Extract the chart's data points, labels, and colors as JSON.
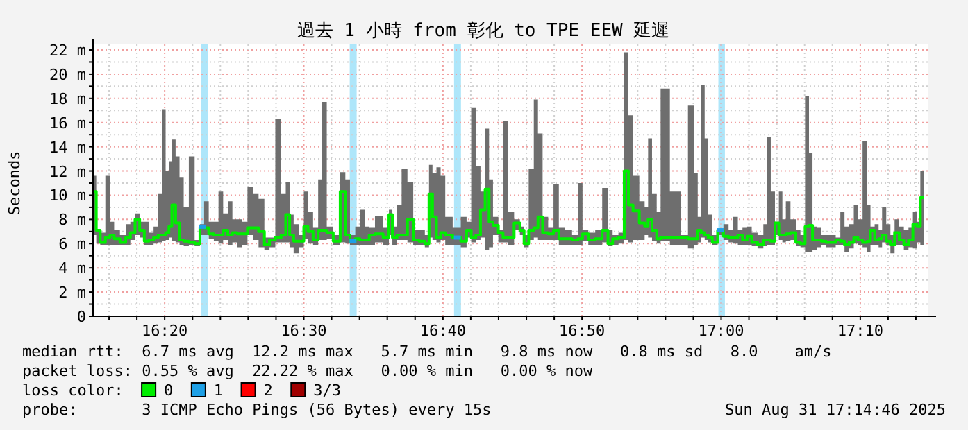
{
  "chart_data": {
    "type": "line",
    "title": "過去 1 小時 from 彰化 to TPE EEW 延遲",
    "ylabel": "Seconds",
    "legend": "bottom",
    "legend_title": "loss color:",
    "grid": true,
    "xlim": [
      16.2475,
      17.2475
    ],
    "ylim": [
      0,
      22
    ],
    "xticks": [
      {
        "value": 16.2667,
        "label": null
      },
      {
        "value": 16.3,
        "label": null
      },
      {
        "value": 16.3333,
        "label": "16:20"
      },
      {
        "value": 16.3667,
        "label": null
      },
      {
        "value": 16.4,
        "label": null
      },
      {
        "value": 16.4333,
        "label": null
      },
      {
        "value": 16.4667,
        "label": null
      },
      {
        "value": 16.5,
        "label": "16:30"
      },
      {
        "value": 16.5333,
        "label": null
      },
      {
        "value": 16.5667,
        "label": null
      },
      {
        "value": 16.6,
        "label": null
      },
      {
        "value": 16.6333,
        "label": null
      },
      {
        "value": 16.6667,
        "label": "16:40"
      },
      {
        "value": 16.7,
        "label": null
      },
      {
        "value": 16.7333,
        "label": null
      },
      {
        "value": 16.7667,
        "label": null
      },
      {
        "value": 16.8,
        "label": null
      },
      {
        "value": 16.8333,
        "label": "16:50"
      },
      {
        "value": 16.8667,
        "label": null
      },
      {
        "value": 16.9,
        "label": null
      },
      {
        "value": 16.9333,
        "label": null
      },
      {
        "value": 16.9667,
        "label": null
      },
      {
        "value": 17,
        "label": "17:00"
      },
      {
        "value": 17.0333,
        "label": null
      },
      {
        "value": 17.0667,
        "label": null
      },
      {
        "value": 17.1,
        "label": null
      },
      {
        "value": 17.1333,
        "label": null
      },
      {
        "value": 17.1667,
        "label": "17:10"
      },
      {
        "value": 17.2,
        "label": null
      },
      {
        "value": 17.2333,
        "label": null
      }
    ],
    "yticks": [
      0,
      {
        "value": 1,
        "label": null
      },
      {
        "value": 2,
        "label": "2 m"
      },
      {
        "value": 3,
        "label": null
      },
      {
        "value": 4,
        "label": "4 m"
      },
      {
        "value": 5,
        "label": null
      },
      {
        "value": 6,
        "label": "6 m"
      },
      {
        "value": 7,
        "label": null
      },
      {
        "value": 8,
        "label": "8 m"
      },
      {
        "value": 9,
        "label": null
      },
      {
        "value": 10,
        "label": "10 m"
      },
      {
        "value": 11,
        "label": null
      },
      {
        "value": 12,
        "label": "12 m"
      },
      {
        "value": 13,
        "label": null
      },
      {
        "value": 14,
        "label": "14 m"
      },
      {
        "value": 15,
        "label": null
      },
      {
        "value": 16,
        "label": "16 m"
      },
      {
        "value": 17,
        "label": null
      },
      {
        "value": 18,
        "label": "18 m"
      },
      {
        "value": 19,
        "label": null
      },
      {
        "value": 20,
        "label": "20 m"
      },
      {
        "value": 21,
        "label": null
      },
      {
        "value": 22,
        "label": "22 m"
      }
    ],
    "bands": [
      {
        "axis": "x",
        "from": 16.3772,
        "to": 16.385,
        "color": "#aee6fa"
      },
      {
        "axis": "x",
        "from": 16.555,
        "to": 16.5633,
        "color": "#aee6fa"
      },
      {
        "axis": "x",
        "from": 16.68,
        "to": 16.6883,
        "color": "#aee6fa"
      },
      {
        "axis": "x",
        "from": 16.9967,
        "to": 17.0045,
        "color": "#aee6fa"
      }
    ],
    "x": [
      16.2494,
      16.2533,
      16.2589,
      16.2656,
      16.27,
      16.2756,
      16.2839,
      16.2894,
      16.295,
      16.3006,
      16.3061,
      16.3117,
      16.3172,
      16.3228,
      16.3283,
      16.3322,
      16.3367,
      16.34,
      16.3439,
      16.3489,
      16.3533,
      16.3589,
      16.3656,
      16.3728,
      16.3783,
      16.3828,
      16.3894,
      16.395,
      16.4006,
      16.4061,
      16.4117,
      16.4172,
      16.4228,
      16.4283,
      16.4367,
      16.4422,
      16.4494,
      16.4561,
      16.4617,
      16.47,
      16.4756,
      16.4811,
      16.485,
      16.4906,
      16.4978,
      16.5022,
      16.5078,
      16.5144,
      16.52,
      16.5239,
      16.5311,
      16.5394,
      16.5478,
      16.5517,
      16.5589,
      16.5644,
      16.57,
      16.5756,
      16.5811,
      16.5894,
      16.6006,
      16.6033,
      16.6089,
      16.6144,
      16.62,
      16.6283,
      16.6339,
      16.6422,
      16.6478,
      16.6522,
      16.6561,
      16.6617,
      16.6661,
      16.6728,
      16.6839,
      16.6922,
      16.6978,
      16.7033,
      16.7089,
      16.7144,
      16.72,
      16.7239,
      16.7294,
      16.7367,
      16.7406,
      16.7478,
      16.7561,
      16.7617,
      16.7661,
      16.7728,
      16.7783,
      16.7828,
      16.7894,
      16.7961,
      16.8022,
      16.8089,
      16.8172,
      16.8256,
      16.8311,
      16.8367,
      16.845,
      16.8533,
      16.8617,
      16.8672,
      16.8728,
      16.8811,
      16.8867,
      16.8911,
      16.8978,
      16.9061,
      16.9106,
      16.9144,
      16.92,
      16.9256,
      16.9294,
      16.9478,
      16.9561,
      16.9644,
      16.97,
      16.9739,
      16.9783,
      16.9822,
      16.9867,
      16.9922,
      16.9994,
      17.0061,
      17.0117,
      17.0172,
      17.0228,
      17.0283,
      17.0339,
      17.0394,
      17.0478,
      17.0533,
      17.0572,
      17.0617,
      17.0672,
      17.0711,
      17.0756,
      17.0794,
      17.0867,
      17.0922,
      17.0978,
      17.1033,
      17.1072,
      17.1117,
      17.1172,
      17.1228,
      17.1283,
      17.1339,
      17.1406,
      17.145,
      17.1506,
      17.1561,
      17.1617,
      17.1661,
      17.1728,
      17.1767,
      17.1811,
      17.1867,
      17.1906,
      17.195,
      17.2006,
      17.205,
      17.2106,
      17.2161,
      17.2217,
      17.2272,
      17.2322,
      17.2367,
      17.2406
    ],
    "series": [
      {
        "type": "step",
        "name": "0",
        "color": "#00ee00",
        "values": [
          10.3,
          7.1,
          6.1,
          6.5,
          6.7,
          6.4,
          6.1,
          6.5,
          6.9,
          8.0,
          7.1,
          6.2,
          6.3,
          6.5,
          6.7,
          6.7,
          6.9,
          7.4,
          9.2,
          7.7,
          6.3,
          6.2,
          6.1,
          6.0,
          7.4,
          7.3,
          6.8,
          6.7,
          6.7,
          7.1,
          6.7,
          6.9,
          6.8,
          6.8,
          7.3,
          7.3,
          7.0,
          5.9,
          6.3,
          6.5,
          6.7,
          8.4,
          6.7,
          6.2,
          6.2,
          7.4,
          7.0,
          6.3,
          7.1,
          7.1,
          6.9,
          6.2,
          10.3,
          6.7,
          6.2,
          6.4,
          6.3,
          6.3,
          6.7,
          6.8,
          6.5,
          8.4,
          6.5,
          6.7,
          6.7,
          8.0,
          6.3,
          6.2,
          6.0,
          10.1,
          8.2,
          6.5,
          6.9,
          6.7,
          6.5,
          6.2,
          7.1,
          6.5,
          6.7,
          8.8,
          10.5,
          7.8,
          7.5,
          6.9,
          6.5,
          6.5,
          7.7,
          7.1,
          6.0,
          7.1,
          7.3,
          8.2,
          6.9,
          6.8,
          7.1,
          6.4,
          6.4,
          6.3,
          6.4,
          6.8,
          6.3,
          6.4,
          7.1,
          6.0,
          6.4,
          6.5,
          12.0,
          9.2,
          8.7,
          7.7,
          7.4,
          8.0,
          7.1,
          6.4,
          6.5,
          6.5,
          6.5,
          6.4,
          6.4,
          7.1,
          6.9,
          6.7,
          6.5,
          6.1,
          7.1,
          6.6,
          6.5,
          6.5,
          6.7,
          6.3,
          6.6,
          6.1,
          5.9,
          6.3,
          6.3,
          6.2,
          7.7,
          6.7,
          6.7,
          6.8,
          6.9,
          6.1,
          6.0,
          7.4,
          7.5,
          6.3,
          6.3,
          6.2,
          6.1,
          6.1,
          6.3,
          6.2,
          5.9,
          6.1,
          6.5,
          6.3,
          6.1,
          6.2,
          7.1,
          6.3,
          6.4,
          6.7,
          6.2,
          5.9,
          6.9,
          6.3,
          5.9,
          6.3,
          7.6,
          7.4,
          9.8
        ],
        "lower": [
          6.7,
          6.0,
          5.9,
          5.9,
          5.9,
          5.9,
          5.9,
          5.9,
          6.3,
          6.7,
          6.5,
          5.9,
          5.9,
          6.0,
          6.1,
          6.2,
          6.3,
          6.5,
          6.2,
          6.1,
          5.9,
          5.8,
          5.9,
          5.8,
          6.7,
          6.7,
          6.4,
          6.2,
          6.0,
          6.3,
          5.9,
          6.1,
          5.7,
          5.9,
          6.7,
          6.3,
          5.7,
          5.5,
          5.7,
          6.1,
          6.1,
          6.1,
          5.7,
          5.2,
          5.7,
          6.4,
          6.0,
          5.9,
          6.3,
          6.3,
          6.4,
          5.9,
          6.1,
          6.0,
          5.9,
          5.9,
          5.9,
          5.9,
          5.9,
          6.1,
          5.9,
          6.7,
          5.9,
          6.3,
          6.3,
          6.1,
          5.9,
          5.9,
          5.7,
          6.5,
          6.3,
          6.1,
          6.3,
          5.9,
          5.9,
          5.7,
          6.5,
          6.1,
          6.3,
          6.5,
          5.5,
          5.7,
          6.7,
          6.1,
          6.1,
          5.9,
          7.1,
          6.7,
          5.7,
          6.3,
          6.5,
          6.3,
          6.3,
          6.3,
          6.3,
          5.9,
          5.9,
          5.9,
          5.9,
          6.2,
          5.9,
          5.9,
          6.1,
          5.8,
          5.9,
          6.0,
          6.3,
          6.1,
          6.3,
          6.3,
          6.7,
          6.5,
          6.2,
          6.0,
          6.2,
          5.9,
          5.9,
          5.6,
          5.9,
          6.1,
          6.5,
          6.3,
          6.1,
          5.9,
          6.7,
          6.3,
          6.1,
          6.0,
          5.9,
          5.9,
          5.9,
          5.8,
          5.6,
          5.8,
          5.9,
          5.9,
          6.7,
          6.3,
          6.1,
          6.2,
          6.3,
          5.8,
          5.7,
          5.3,
          5.3,
          5.5,
          5.7,
          5.9,
          5.7,
          5.7,
          5.9,
          5.9,
          5.3,
          5.6,
          6.0,
          5.9,
          5.7,
          5.3,
          5.9,
          5.9,
          5.7,
          6.1,
          5.9,
          5.2,
          5.9,
          5.9,
          5.5,
          5.7,
          5.6,
          6.1,
          5.9
        ],
        "upper": [
          11.6,
          7.1,
          6.9,
          11.6,
          7.8,
          7.1,
          6.7,
          7.6,
          7.8,
          8.5,
          7.8,
          7.8,
          6.9,
          7.4,
          10.1,
          17.1,
          12.0,
          12.8,
          14.6,
          13.2,
          11.5,
          9.0,
          13.2,
          6.3,
          7.6,
          9.5,
          7.8,
          7.8,
          10.3,
          8.5,
          9.5,
          8.0,
          8.0,
          7.8,
          10.7,
          10.1,
          9.7,
          6.5,
          6.5,
          16.3,
          10.1,
          11.1,
          8.4,
          7.6,
          6.7,
          10.3,
          8.6,
          7.3,
          11.3,
          17.7,
          7.4,
          6.7,
          11.9,
          11.3,
          6.7,
          7.4,
          8.8,
          7.4,
          7.3,
          8.3,
          7.3,
          8.8,
          7.4,
          9.2,
          12.2,
          11.1,
          7.1,
          7.1,
          6.7,
          12.5,
          11.8,
          12.3,
          11.6,
          8.2,
          7.3,
          8.2,
          7.8,
          17.2,
          12.4,
          10.3,
          15.5,
          11.3,
          8.2,
          7.1,
          16.1,
          8.6,
          8.0,
          7.4,
          6.7,
          12.2,
          17.9,
          15.1,
          8.2,
          7.3,
          10.9,
          7.3,
          7.1,
          6.7,
          11.0,
          7.1,
          6.9,
          7.1,
          10.6,
          7.1,
          6.7,
          6.9,
          21.8,
          16.6,
          11.6,
          9.5,
          9.0,
          14.7,
          10.1,
          8.6,
          18.8,
          10.3,
          6.7,
          17.4,
          11.8,
          8.2,
          19.1,
          14.7,
          8.4,
          6.7,
          7.1,
          7.6,
          7.1,
          8.2,
          7.1,
          7.3,
          7.4,
          6.9,
          6.7,
          7.6,
          14.8,
          10.3,
          7.8,
          10.3,
          8.0,
          9.5,
          8.0,
          7.1,
          6.7,
          18.2,
          13.5,
          7.4,
          7.3,
          6.7,
          6.7,
          6.7,
          6.5,
          8.6,
          7.4,
          7.6,
          9.2,
          8.0,
          14.5,
          9.2,
          7.4,
          7.6,
          7.1,
          9.0,
          7.6,
          6.7,
          8.0,
          7.4,
          7.1,
          7.3,
          8.6,
          7.8,
          12.0
        ]
      },
      {
        "type": "scatter",
        "name": "1",
        "color": "#1ea0e6",
        "marker": "square",
        "x": [
          16.3783,
          16.5589,
          16.6839,
          16.9994
        ],
        "values": [
          7.4,
          6.2,
          6.5,
          7.1
        ]
      },
      {
        "type": "scatter",
        "name": "2",
        "color": "#ff0000",
        "marker": "square",
        "values": [
          null,
          null,
          null,
          null,
          null,
          null,
          null,
          null,
          null,
          null,
          null,
          null,
          null,
          null,
          null,
          null,
          null,
          null,
          null,
          null,
          null,
          null,
          null,
          null,
          null,
          null,
          null,
          null,
          null,
          null,
          null,
          null,
          null,
          null,
          null,
          null,
          null,
          null,
          null,
          null,
          null,
          null,
          null,
          null,
          null,
          null,
          null,
          null,
          null,
          null,
          null,
          null,
          null,
          null,
          null,
          null,
          null,
          null,
          null,
          null,
          null,
          null,
          null,
          null,
          null,
          null,
          null,
          null,
          null,
          null,
          null,
          null,
          null,
          null,
          null,
          null,
          null,
          null,
          null,
          null,
          null,
          null,
          null,
          null,
          null,
          null,
          null,
          null,
          null,
          null,
          null,
          null,
          null,
          null,
          null,
          null,
          null,
          null,
          null,
          null,
          null,
          null,
          null,
          null,
          null,
          null,
          null,
          null,
          null,
          null,
          null,
          null,
          null,
          null,
          null,
          null,
          null,
          null,
          null,
          null,
          null,
          null,
          null,
          null,
          null,
          null,
          null,
          null,
          null,
          null,
          null,
          null,
          null,
          null,
          null,
          null,
          null,
          null,
          null,
          null,
          null,
          null,
          null,
          null,
          null,
          null,
          null,
          null,
          null,
          null,
          null,
          null,
          null,
          null,
          null,
          null,
          null,
          null,
          null,
          null,
          null,
          null,
          null,
          null,
          null,
          null,
          null,
          null,
          null,
          null,
          null
        ]
      },
      {
        "type": "scatter",
        "name": "3/3",
        "color": "#a00000",
        "marker": "square",
        "values": [
          null,
          null,
          null,
          null,
          null,
          null,
          null,
          null,
          null,
          null,
          null,
          null,
          null,
          null,
          null,
          null,
          null,
          null,
          null,
          null,
          null,
          null,
          null,
          null,
          null,
          null,
          null,
          null,
          null,
          null,
          null,
          null,
          null,
          null,
          null,
          null,
          null,
          null,
          null,
          null,
          null,
          null,
          null,
          null,
          null,
          null,
          null,
          null,
          null,
          null,
          null,
          null,
          null,
          null,
          null,
          null,
          null,
          null,
          null,
          null,
          null,
          null,
          null,
          null,
          null,
          null,
          null,
          null,
          null,
          null,
          null,
          null,
          null,
          null,
          null,
          null,
          null,
          null,
          null,
          null,
          null,
          null,
          null,
          null,
          null,
          null,
          null,
          null,
          null,
          null,
          null,
          null,
          null,
          null,
          null,
          null,
          null,
          null,
          null,
          null,
          null,
          null,
          null,
          null,
          null,
          null,
          null,
          null,
          null,
          null,
          null,
          null,
          null,
          null,
          null,
          null,
          null,
          null,
          null,
          null,
          null,
          null,
          null,
          null,
          null,
          null,
          null,
          null,
          null,
          null,
          null,
          null,
          null,
          null,
          null,
          null,
          null,
          null,
          null,
          null,
          null,
          null,
          null,
          null,
          null,
          null,
          null,
          null,
          null,
          null,
          null,
          null,
          null,
          null,
          null,
          null,
          null,
          null,
          null,
          null,
          null,
          null,
          null,
          null,
          null,
          null,
          null,
          null,
          null,
          null,
          null
        ]
      }
    ],
    "annotations": [
      "median rtt:  6.7 ms avg  12.2 ms max   5.7 ms min   9.8 ms now   0.8 ms sd   8.0    am/s",
      "packet loss: 0.55 % avg  22.22 % max   0.00 % min   0.00 % now",
      "probe:       3 ICMP Echo Pings (56 Bytes) every 15s",
      "Sun Aug 31 17:14:46 2025"
    ]
  }
}
